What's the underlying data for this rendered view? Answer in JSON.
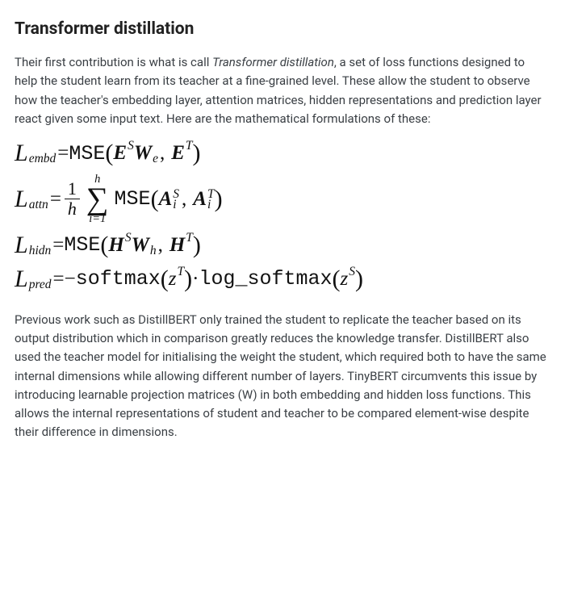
{
  "heading": "Transformer distillation",
  "para1_a": "Their first contribution is what is call ",
  "para1_term": "Transformer distillation",
  "para1_b": ", a set of loss functions designed to help the student learn from its teacher at a fine-grained level. These allow the student to observe how the teacher's embedding layer, attention matrices, hidden representations and prediction layer react given some input text. Here are the mathematical formulations of these:",
  "math": {
    "L": "L",
    "sub_embd": "embd",
    "sub_attn": "attn",
    "sub_hidn": "hidn",
    "sub_pred": "pred",
    "eq": " = ",
    "MSE": "MSE",
    "softmax": "softmax",
    "log_softmax": "log_softmax",
    "E": "E",
    "W": "W",
    "A": "A",
    "H": "H",
    "z": "z",
    "S": "S",
    "T": "T",
    "e": "e",
    "h": "h",
    "i": "i",
    "one": "1",
    "istart": "i=1",
    "comma": ",",
    "dot": " · ",
    "minus": "−",
    "lp": "(",
    "rp": ")"
  },
  "para2": "Previous work such as DistillBERT only trained the student to replicate the teacher based on its output distribution which in comparison greatly reduces the knowledge transfer. DistillBERT also used the teacher model for initialising the weight the student, which required both to have the same internal dimensions while allowing different number of layers. TinyBERT circumvents this issue by introducing learnable projection matrices (W) in both embedding and hidden loss functions. This allows the internal representations of student and teacher to be compared element-wise despite their difference in dimensions."
}
